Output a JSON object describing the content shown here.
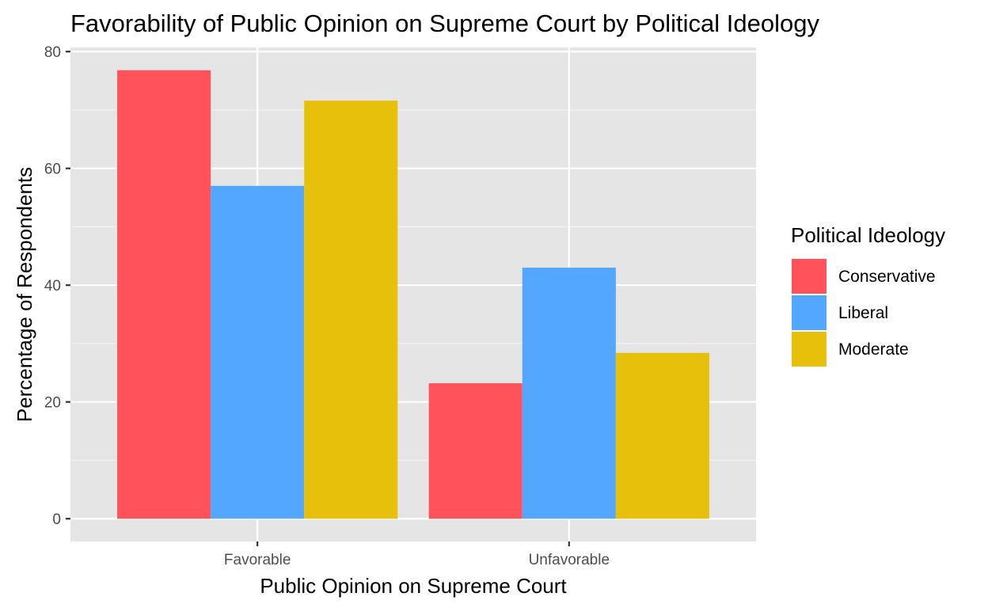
{
  "chart_data": {
    "type": "bar",
    "title": "Favorability of Public Opinion on Supreme Court by Political Ideology",
    "xlabel": "Public Opinion on Supreme Court",
    "ylabel": "Percentage of Respondents",
    "categories": [
      "Favorable",
      "Unfavorable"
    ],
    "series": [
      {
        "name": "Conservative",
        "color": "#ff525a",
        "values": [
          76.8,
          23.2
        ]
      },
      {
        "name": "Liberal",
        "color": "#54a7ff",
        "values": [
          57.0,
          43.0
        ]
      },
      {
        "name": "Moderate",
        "color": "#e6c00b",
        "values": [
          71.6,
          28.4
        ]
      }
    ],
    "ylim": [
      -3.9,
      80.7
    ],
    "yticks": [
      0,
      20,
      40,
      60,
      80
    ],
    "legend": {
      "title": "Political Ideology",
      "position": "right"
    },
    "grid": true,
    "panel_background": "#e5e5e5"
  }
}
